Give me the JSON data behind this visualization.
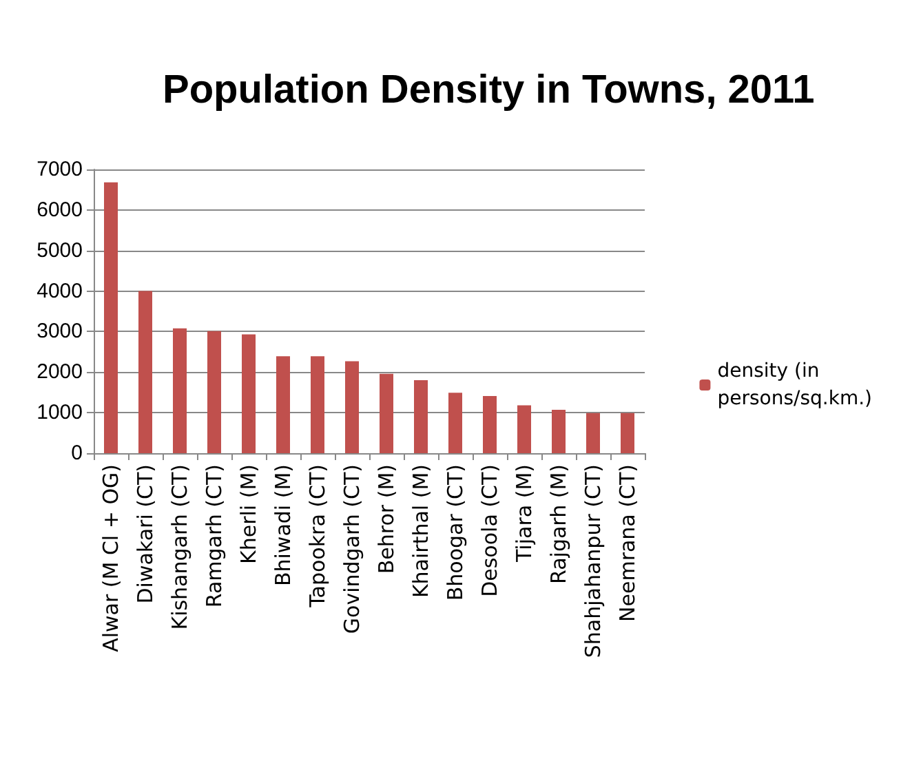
{
  "chart_data": {
    "type": "bar",
    "title": "Population Density in Towns, 2011",
    "categories": [
      "Alwar (M Cl + OG)",
      "Diwakari (CT)",
      "Kishangarh (CT)",
      "Ramgarh (CT)",
      "Kherli (M)",
      "Bhiwadi (M)",
      "Tapookra (CT)",
      "Govindgarh (CT)",
      "Behror (M)",
      "Khairthal (M)",
      "Bhoogar (CT)",
      "Desoola (CT)",
      "Tijara (M)",
      "Rajgarh (M)",
      "Shahjahanpur (CT)",
      "Neemrana (CT)"
    ],
    "series": [
      {
        "name": "density (in persons/sq.km.)",
        "color": "#c0504d",
        "values": [
          6680,
          4000,
          3080,
          3010,
          2930,
          2390,
          2390,
          2270,
          1960,
          1800,
          1490,
          1410,
          1180,
          1070,
          990,
          990
        ]
      }
    ],
    "ylim": [
      0,
      7000
    ],
    "yticks": [
      0,
      1000,
      2000,
      3000,
      4000,
      5000,
      6000,
      7000
    ],
    "grid": "y",
    "legend": "right"
  }
}
